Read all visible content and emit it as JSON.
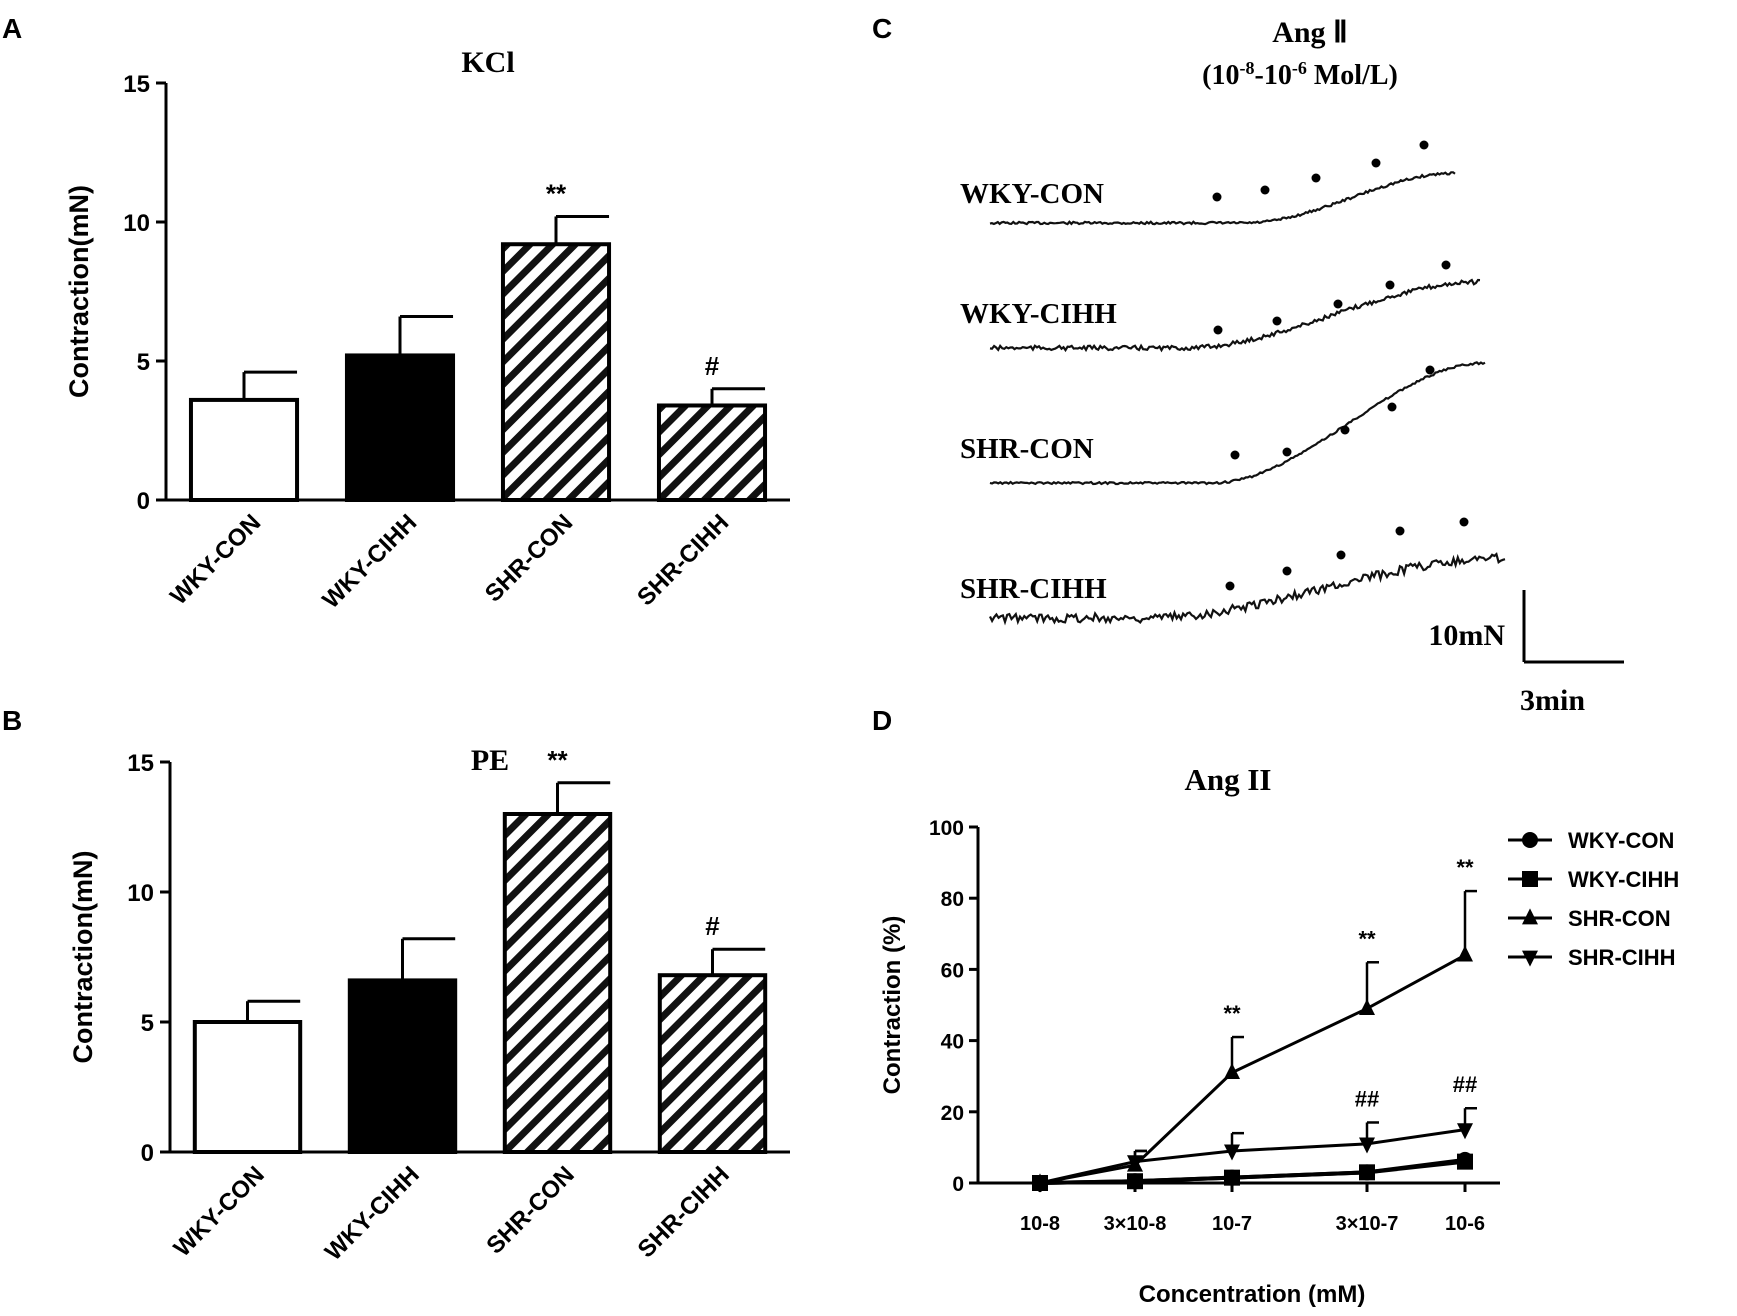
{
  "chart_data": [
    {
      "panel": "A",
      "type": "bar",
      "title": "KCl",
      "ylabel": "Contraction(mN)",
      "xlabel": "",
      "ylim": [
        0,
        15
      ],
      "yticks": [
        "0",
        "5",
        "10",
        "15"
      ],
      "categories": [
        "WKY-CON",
        "WKY-CIHH",
        "SHR-CON",
        "SHR-CIHH"
      ],
      "values": [
        3.6,
        5.2,
        9.2,
        3.4
      ],
      "errors": [
        1.0,
        1.4,
        1.0,
        0.6
      ],
      "annotations": [
        "",
        "",
        "**",
        "#"
      ],
      "fills": [
        "white",
        "black",
        "hatch",
        "hatch"
      ]
    },
    {
      "panel": "B",
      "type": "bar",
      "title": "PE",
      "ylabel": "Contraction(mN)",
      "xlabel": "",
      "ylim": [
        0,
        15
      ],
      "yticks": [
        "0",
        "5",
        "10",
        "15"
      ],
      "categories": [
        "WKY-CON",
        "WKY-CIHH",
        "SHR-CON",
        "SHR-CIHH"
      ],
      "values": [
        5.0,
        6.6,
        13.0,
        6.8
      ],
      "errors": [
        0.8,
        1.6,
        1.2,
        1.0
      ],
      "annotations": [
        "",
        "",
        "**",
        "#"
      ],
      "fills": [
        "white",
        "black",
        "hatch",
        "hatch"
      ]
    },
    {
      "panel": "C",
      "type": "traces",
      "title": "Ang II",
      "subtitle": "(10-8-10-6 Mol/L)",
      "traces": [
        "WKY-CON",
        "WKY-CIHH",
        "SHR-CON",
        "SHR-CIHH"
      ],
      "scale_bar": {
        "y_label": "10mN",
        "x_label": "3min"
      }
    },
    {
      "panel": "D",
      "type": "line",
      "title": "Ang II",
      "xlabel": "Concentration (mM)",
      "ylabel": "Contraction (%)",
      "ylim": [
        0,
        100
      ],
      "yticks": [
        "0",
        "20",
        "40",
        "60",
        "80",
        "100"
      ],
      "categories": [
        "10-8",
        "3×10-8",
        "10-7",
        "3×10-7",
        "10-6"
      ],
      "series": [
        {
          "name": "WKY-CON",
          "marker": "circle",
          "values": [
            0,
            0.5,
            1.5,
            3,
            6.5
          ],
          "errors": [
            0,
            0,
            0,
            0,
            0
          ]
        },
        {
          "name": "WKY-CIHH",
          "marker": "square",
          "values": [
            0,
            0.5,
            1.5,
            3,
            6
          ],
          "errors": [
            0,
            0,
            0,
            0,
            0
          ]
        },
        {
          "name": "SHR-CON",
          "marker": "triangle-up",
          "values": [
            0,
            5,
            31,
            49,
            64
          ],
          "errors": [
            0,
            4,
            10,
            13,
            18
          ]
        },
        {
          "name": "SHR-CIHH",
          "marker": "triangle-down",
          "values": [
            0,
            6,
            9,
            11,
            15
          ],
          "errors": [
            0,
            3,
            5,
            6,
            6
          ]
        }
      ],
      "annotations": [
        {
          "category": "10-7",
          "text": "**",
          "series": "SHR-CON"
        },
        {
          "category": "3×10-7",
          "text": "**",
          "series": "SHR-CON"
        },
        {
          "category": "10-6",
          "text": "**",
          "series": "SHR-CON"
        },
        {
          "category": "3×10-7",
          "text": "##",
          "series": "SHR-CIHH"
        },
        {
          "category": "10-6",
          "text": "##",
          "series": "SHR-CIHH"
        }
      ],
      "legend": "right"
    }
  ],
  "panel_labels": [
    "A",
    "B",
    "C",
    "D"
  ],
  "panelC": {
    "title_line1": "Ang",
    "title_roman": "Ⅱ",
    "sub_open": "(10",
    "sub_exp1": "-8",
    "sub_mid": "-10",
    "sub_exp2": "-6",
    "sub_close": " Mol/L)"
  }
}
